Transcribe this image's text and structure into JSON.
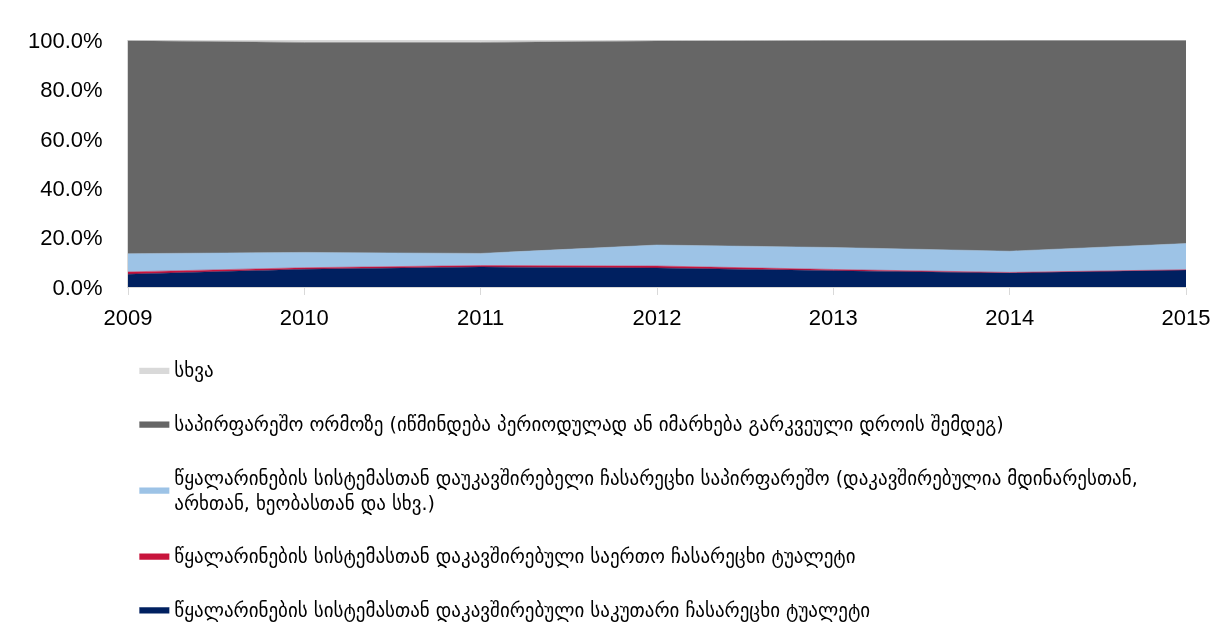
{
  "chart_data": {
    "type": "area",
    "stacked": true,
    "x": [
      2009,
      2010,
      2011,
      2012,
      2013,
      2014,
      2015
    ],
    "xlim": [
      2009,
      2015
    ],
    "xticks": [
      2009,
      2010,
      2011,
      2012,
      2013,
      2014,
      2015
    ],
    "ylim": [
      0,
      100
    ],
    "yticks": [
      {
        "value": 0,
        "label": "0.0%"
      },
      {
        "value": 20,
        "label": "20.0%"
      },
      {
        "value": 40,
        "label": "40.0%"
      },
      {
        "value": 60,
        "label": "60.0%"
      },
      {
        "value": 80,
        "label": "80.0%"
      },
      {
        "value": 100,
        "label": "100.0%"
      }
    ],
    "legend": "bottom",
    "series": [
      {
        "name": "წყალარინების სისტემასთან დაკავშირებული საკუთარი ჩასარეცხი ტუალეტი",
        "color": "#002060",
        "values": [
          5.2,
          7.2,
          8.1,
          7.7,
          6.6,
          5.7,
          6.9
        ]
      },
      {
        "name": "წყალარინების სისტემასთან დაკავშირებული საერთო ჩასარეცხი ტუალეტი",
        "color": "#c8143c",
        "values": [
          0.9,
          0.6,
          0.6,
          0.8,
          0.5,
          0.2,
          0.1
        ]
      },
      {
        "name": "წყალარინების სისტემასთან დაუკავშირებელი ჩასარეცხი საპირფარეშო (დაკავშირებულია მდინარესთან, არხთან, ხეობასთან და სხვ.)",
        "color": "#9dc3e6",
        "values": [
          7.4,
          6.2,
          4.9,
          8.5,
          8.9,
          8.6,
          10.6
        ]
      },
      {
        "name": "საპირფარეშო ორმოზე (იწმინდება პერიოდულად ან იმარხება გარკვეული დროის შემდეგ)",
        "color": "#666666",
        "values": [
          86.2,
          85.0,
          85.4,
          82.6,
          83.8,
          85.4,
          82.3
        ]
      },
      {
        "name": "სხვა",
        "color": "#d9d9d9",
        "values": [
          0.3,
          1.0,
          1.0,
          0.4,
          0.2,
          0.1,
          0.1
        ]
      }
    ]
  }
}
